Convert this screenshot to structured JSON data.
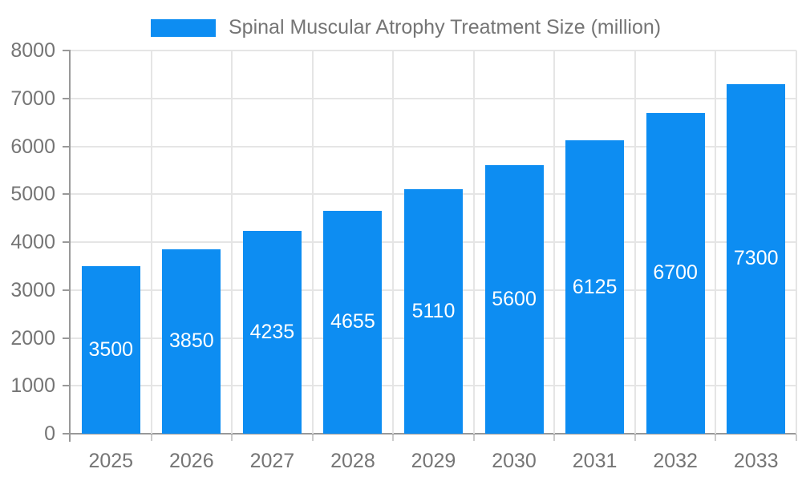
{
  "chart_data": {
    "type": "bar",
    "title": "Spinal Muscular Atrophy Treatment Size (million)",
    "categories": [
      "2025",
      "2026",
      "2027",
      "2028",
      "2029",
      "2030",
      "2031",
      "2032",
      "2033"
    ],
    "values": [
      3500,
      3850,
      4235,
      4655,
      5110,
      5600,
      6125,
      6700,
      7300
    ],
    "xlabel": "",
    "ylabel": "",
    "ylim": [
      0,
      8000
    ],
    "ytick_step": 1000,
    "ytick_labels": [
      "0",
      "1000",
      "2000",
      "3000",
      "4000",
      "5000",
      "6000",
      "7000",
      "8000"
    ],
    "grid": true,
    "legend_position": "top",
    "value_label_position": "inside-center",
    "colors": {
      "bar": "#0D8DF2",
      "grid": "#e5e5e5",
      "axis_line": "#999999",
      "axis_label": "#757575",
      "value_label": "#ffffff",
      "category_tick": "#cccccc",
      "background": "#ffffff"
    }
  }
}
